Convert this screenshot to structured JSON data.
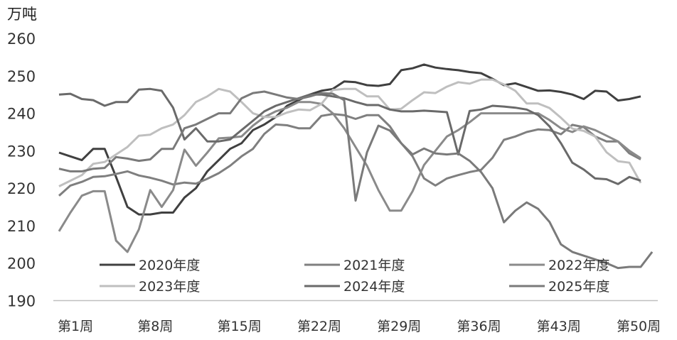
{
  "chart_data": {
    "type": "line",
    "title": "",
    "ylabel": "万吨",
    "xlabel": "",
    "ylim": [
      190,
      260
    ],
    "yticks": [
      "190",
      "200",
      "210",
      "220",
      "230",
      "240",
      "250",
      "260"
    ],
    "x_tick_labels": [
      {
        "week": 1,
        "label": "第1周"
      },
      {
        "week": 8,
        "label": "第8周"
      },
      {
        "week": 15,
        "label": "第15周"
      },
      {
        "week": 22,
        "label": "第22周"
      },
      {
        "week": 29,
        "label": "第29周"
      },
      {
        "week": 36,
        "label": "第36周"
      },
      {
        "week": 43,
        "label": "第43周"
      },
      {
        "week": 50,
        "label": "第50周"
      }
    ],
    "grid": false,
    "legend_placement": "bottom-inside",
    "series": [
      {
        "name": "2020年度",
        "color": "#404040",
        "values": [
          229.5,
          228.5,
          227.5,
          230.5,
          230.5,
          223,
          215,
          213,
          213,
          213.5,
          213.5,
          217.5,
          220,
          224.5,
          227.5,
          230.5,
          232,
          235.5,
          237,
          239,
          242,
          243.5,
          245,
          246,
          246.5,
          248.5,
          248.3,
          247.5,
          247.3,
          247.8,
          251.5,
          252,
          253,
          252.2,
          251.8,
          251.5,
          251,
          250.7,
          249.2,
          247.5,
          248,
          247,
          246,
          246.1,
          245.7,
          245,
          243.8,
          246,
          245.8,
          243.4,
          243.8,
          244.5
        ]
      },
      {
        "name": "2021年度",
        "color": "#7f7f7f",
        "values": [
          218,
          220.7,
          221.7,
          223,
          223.2,
          223.8,
          224.5,
          223.4,
          222.8,
          222,
          221,
          221.5,
          221.2,
          222.5,
          224,
          226,
          228.5,
          230.5,
          234.5,
          237,
          236.8,
          236,
          236,
          239.3,
          239.8,
          239.5,
          238.5,
          239.5,
          239.5,
          236.5,
          232,
          228.5,
          222.6,
          220.7,
          222.6,
          223.5,
          224.3,
          224.9,
          228.1,
          232.9,
          233.8,
          235,
          235.7,
          235.5,
          234.4,
          236.9,
          236.3,
          233.8,
          232.5,
          232.5,
          229.3,
          227.7
        ]
      },
      {
        "name": "2022年度",
        "color": "#8a8a8a",
        "values": [
          208.5,
          213.5,
          218,
          219.2,
          219.2,
          206,
          203,
          209,
          219.5,
          215,
          219.5,
          230.3,
          226,
          229.5,
          233.3,
          233.5,
          233.8,
          236.7,
          239,
          240.5,
          241.5,
          243,
          243,
          242.5,
          240,
          236,
          231,
          226,
          219.5,
          214,
          214,
          219.2,
          226.2,
          230,
          233.8,
          235.5,
          237.6,
          240,
          240,
          240,
          240,
          240,
          240,
          238.2,
          236,
          235,
          236.5,
          235.5,
          234,
          232.5,
          230,
          228
        ]
      },
      {
        "name": "2023年度",
        "color": "#bfbfbf",
        "values": [
          220.5,
          222,
          223.5,
          226.5,
          227,
          229,
          231,
          234,
          234.3,
          236,
          237,
          239.5,
          243,
          244.5,
          246.5,
          245.8,
          243,
          240,
          239,
          239,
          240.2,
          241,
          240.8,
          242.5,
          246.2,
          246.5,
          246.5,
          244.5,
          244.5,
          241,
          241.2,
          243.5,
          245.6,
          245.4,
          247.1,
          248.3,
          247.9,
          249,
          249,
          247.7,
          246,
          242.6,
          242.6,
          241.4,
          238.8,
          235.9,
          235.3,
          233.8,
          229.6,
          227.2,
          226.8,
          221.4
        ]
      },
      {
        "name": "2024年度",
        "color": "#6a6a6a",
        "values": [
          245,
          245.2,
          243.8,
          243.5,
          242,
          243,
          243,
          246.3,
          246.5,
          246,
          241.5,
          233,
          236,
          232.5,
          232.5,
          233,
          235.5,
          238,
          240.5,
          242,
          243,
          244,
          245,
          245,
          244.5,
          244,
          243,
          242.2,
          242.2,
          241,
          240.5,
          240.5,
          240.7,
          240.5,
          240.3,
          229,
          240.6,
          241,
          242,
          241.8,
          241.5,
          241,
          239.5,
          236.5,
          232,
          226.8,
          225,
          222.6,
          222.4,
          221.1,
          223,
          222
        ]
      },
      {
        "name": "2025年度",
        "color": "#7a7a7a",
        "values": [
          225.2,
          224.5,
          224.5,
          225.2,
          225.4,
          228.3,
          227.9,
          227.3,
          227.7,
          230.5,
          230.5,
          236,
          237,
          238.5,
          240,
          240,
          244,
          245.4,
          245.8,
          245,
          244.2,
          243.8,
          244.5,
          245.4,
          245.2,
          243.5,
          216.7,
          229.6,
          236.7,
          235.4,
          232,
          229,
          230.6,
          229.3,
          229,
          229.3,
          227.3,
          224.3,
          220,
          210.9,
          214,
          216.2,
          214.5,
          211,
          205,
          203,
          202,
          201,
          200,
          198.7,
          199,
          199,
          203
        ]
      }
    ]
  }
}
